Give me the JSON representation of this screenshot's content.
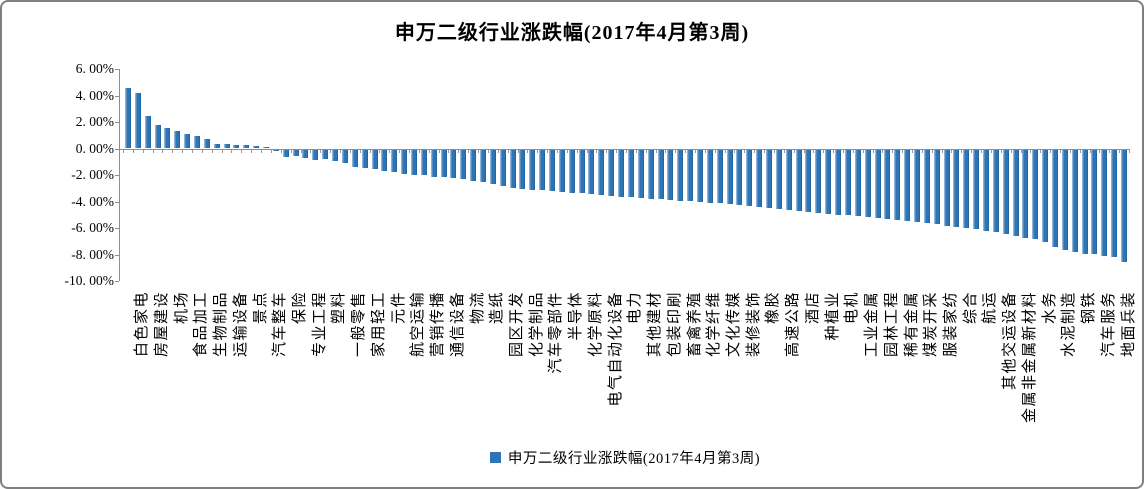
{
  "window": {
    "background": "#FFFFFF",
    "border_color": "#7F7F7F"
  },
  "title": "申万二级行业涨跌幅(2017年4月第3周)",
  "legend": {
    "label": "申万二级行业涨跌幅(2017年4月第3周)",
    "marker_color": "#2E75B6"
  },
  "chart_data": {
    "type": "bar",
    "title": "申万二级行业涨跌幅(2017年4月第3周)",
    "series_name": "申万二级行业涨跌幅(2017年4月第3周)",
    "bar_color": "#2E75B6",
    "ylim": [
      -10,
      6
    ],
    "grid": false,
    "legend_position": "bottom-center",
    "y_tick_labels": [
      "6. 00%",
      "4. 00%",
      "2. 00%",
      "0. 00%",
      "-2. 00%",
      "-4. 00%",
      "-6. 00%",
      "-8. 00%",
      "-10. 00%"
    ],
    "y_tick_values": [
      6,
      4,
      2,
      0,
      -2,
      -4,
      -6,
      -8,
      -10
    ],
    "x_label_interval": 2,
    "categories": [
      "白色家电",
      "房屋建设",
      "机场",
      "食品加工",
      "生物制品",
      "运输设备",
      "景点",
      "汽车整车",
      "保险",
      "专业工程",
      "塑料",
      "一般零售",
      "家用轻工",
      "元件",
      "航空运输",
      "营销传播",
      "通信设备",
      "物流",
      "造纸",
      "园区开发",
      "化学制品",
      "汽车零部件",
      "半导体",
      "化学原料",
      "电气自动化设备",
      "电力",
      "其他建材",
      "包装印刷",
      "畜禽养殖",
      "化学纤维",
      "文化传媒",
      "装修装饰",
      "橡胶",
      "高速公路",
      "酒店",
      "种植业",
      "电机",
      "工业金属",
      "园林工程",
      "稀有金属",
      "煤炭开采",
      "服装家纺",
      "综合",
      "航运",
      "其他交运设备",
      "金属非金属新材料",
      "水务",
      "水泥制造",
      "钢铁",
      "汽车服务",
      "地面兵装"
    ],
    "values": [
      4.55,
      4.22,
      2.46,
      1.78,
      1.58,
      1.3,
      1.12,
      0.92,
      0.7,
      0.36,
      0.33,
      0.3,
      0.26,
      0.2,
      0.1,
      -0.12,
      -0.6,
      -0.52,
      -0.62,
      -0.8,
      -0.72,
      -0.85,
      -1.0,
      -1.33,
      -1.41,
      -1.5,
      -1.6,
      -1.71,
      -1.84,
      -1.9,
      -1.96,
      -2.04,
      -2.1,
      -2.17,
      -2.26,
      -2.34,
      -2.47,
      -2.6,
      -2.72,
      -2.92,
      -2.97,
      -3.02,
      -3.08,
      -3.14,
      -3.2,
      -3.26,
      -3.32,
      -3.38,
      -3.44,
      -3.5,
      -3.55,
      -3.6,
      -3.65,
      -3.7,
      -3.75,
      -3.8,
      -3.85,
      -3.9,
      -3.95,
      -4.0,
      -4.05,
      -4.1,
      -4.18,
      -4.25,
      -4.32,
      -4.4,
      -4.48,
      -4.56,
      -4.65,
      -4.74,
      -4.8,
      -4.86,
      -4.92,
      -4.98,
      -5.04,
      -5.1,
      -5.18,
      -5.26,
      -5.34,
      -5.42,
      -5.5,
      -5.58,
      -5.66,
      -5.74,
      -5.82,
      -5.92,
      -6.02,
      -6.12,
      -6.22,
      -6.35,
      -6.5,
      -6.65,
      -6.77,
      -7.0,
      -7.35,
      -7.6,
      -7.75,
      -7.85,
      -7.9,
      -8.0,
      -8.15,
      -8.5
    ]
  }
}
